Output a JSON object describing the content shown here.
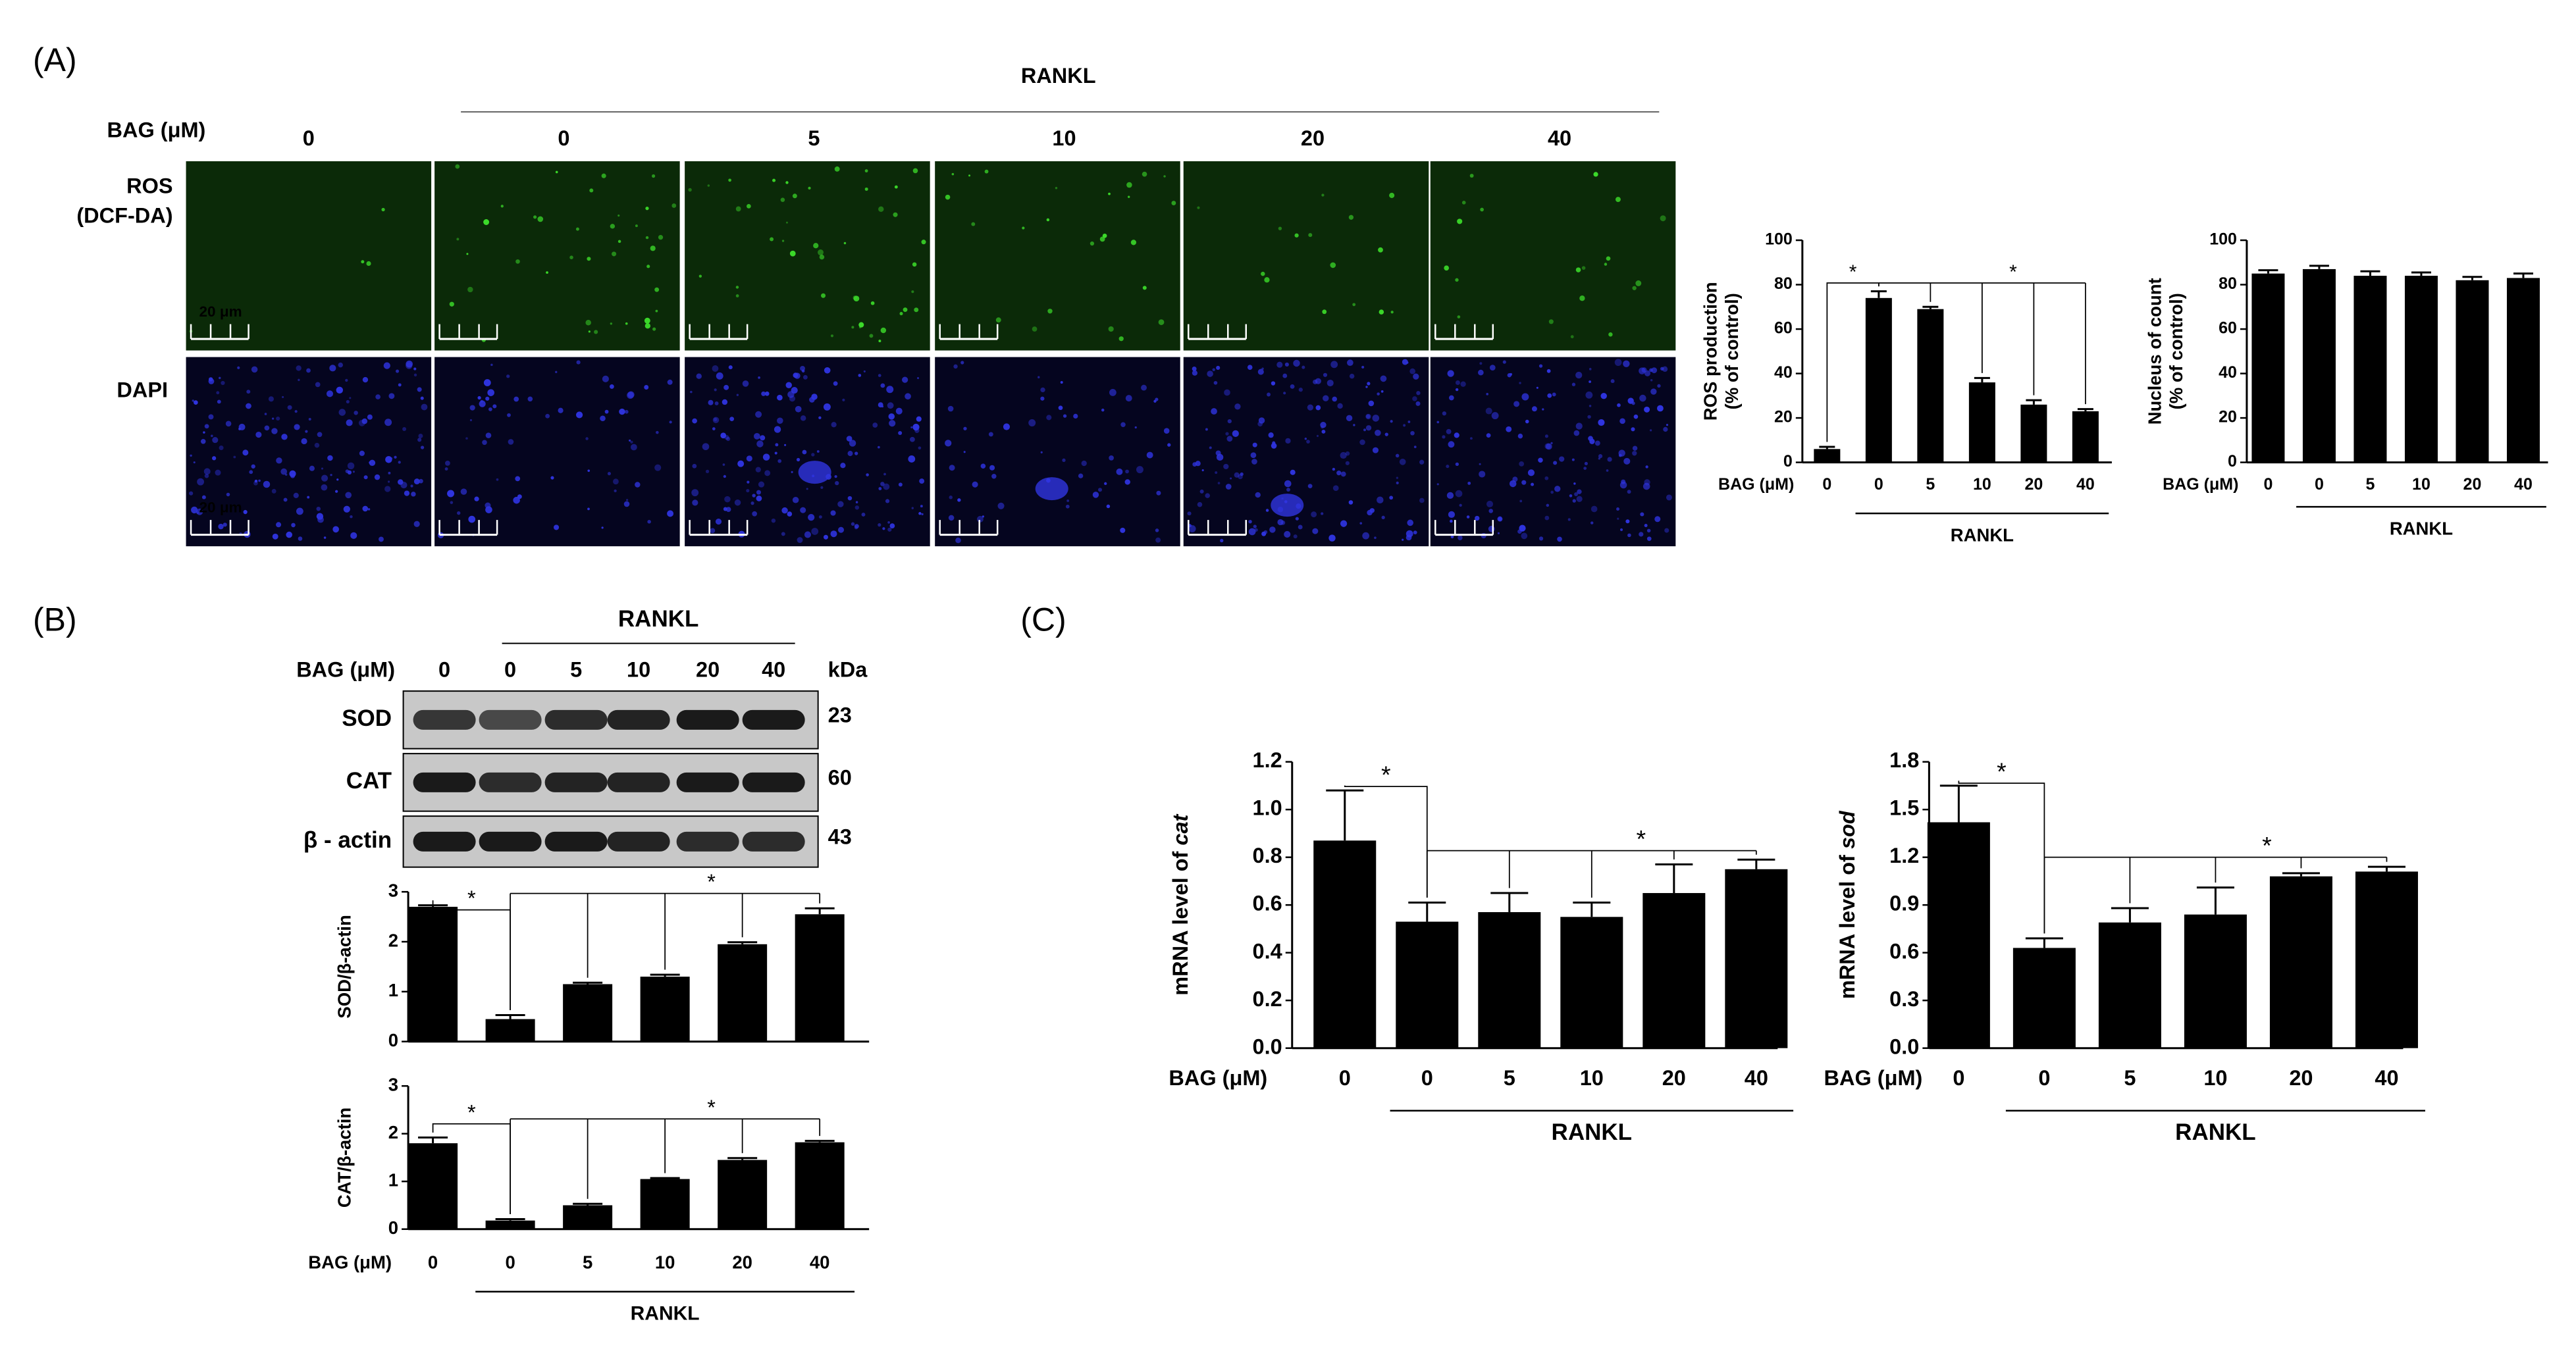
{
  "figure": {
    "panel_labels": [
      "(A)",
      "(B)",
      "(C)"
    ],
    "micrograph": {
      "group_label": "RANKL",
      "dose_label": "BAG (μM)",
      "doses": [
        "0",
        "0",
        "5",
        "10",
        "20",
        "40"
      ],
      "rows": [
        [
          "ROS",
          "(DCF-DA)"
        ],
        [
          "DAPI"
        ]
      ],
      "scale_label": "20 μm"
    },
    "blot": {
      "group_label": "RANKL",
      "dose_label": "BAG (μM)",
      "doses": [
        "0",
        "0",
        "5",
        "10",
        "20",
        "40"
      ],
      "unit": "kDa",
      "proteins": [
        {
          "name": "SOD",
          "kda": "23"
        },
        {
          "name": "CAT",
          "kda": "60"
        },
        {
          "name": "β - actin",
          "kda": "43"
        }
      ]
    }
  },
  "chart_data": [
    {
      "type": "bar",
      "ylabel": [
        "ROS production",
        "(% of control)"
      ],
      "xlabel": "BAG (μM)",
      "group_label": "RANKL",
      "categories": [
        "0",
        "0",
        "5",
        "10",
        "20",
        "40"
      ],
      "values": [
        6,
        74,
        69,
        36,
        26,
        23
      ],
      "errors": [
        1,
        3,
        1,
        2,
        2,
        1
      ],
      "ylim": [
        0,
        100
      ],
      "yticks": [
        0,
        20,
        40,
        60,
        80,
        100
      ],
      "color": "#000000",
      "annotations": [
        "*",
        "*"
      ]
    },
    {
      "type": "bar",
      "ylabel": [
        "Nucleus of count",
        "(% of control)"
      ],
      "xlabel": "BAG (μM)",
      "group_label": "RANKL",
      "categories": [
        "0",
        "0",
        "5",
        "10",
        "20",
        "40"
      ],
      "values": [
        85,
        87,
        84,
        84,
        82,
        83
      ],
      "errors": [
        1.5,
        1.5,
        2,
        1.5,
        1.5,
        2
      ],
      "ylim": [
        0,
        100
      ],
      "yticks": [
        0,
        20,
        40,
        60,
        80,
        100
      ],
      "color": "#000000"
    },
    {
      "type": "bar",
      "ylabel": [
        "SOD/β-actin"
      ],
      "values": [
        2.7,
        0.45,
        1.15,
        1.3,
        1.95,
        2.55
      ],
      "errors": [
        0.03,
        0.08,
        0.03,
        0.04,
        0.04,
        0.12
      ],
      "ylim": [
        0,
        3
      ],
      "yticks": [
        0,
        1,
        2,
        3
      ],
      "color": "#000000",
      "annotations": [
        "*",
        "*"
      ]
    },
    {
      "type": "bar",
      "ylabel": [
        "CAT/β-actin"
      ],
      "xlabel": "BAG (μM)",
      "group_label": "RANKL",
      "categories": [
        "0",
        "0",
        "5",
        "10",
        "20",
        "40"
      ],
      "values": [
        1.8,
        0.18,
        0.5,
        1.05,
        1.45,
        1.82
      ],
      "errors": [
        0.12,
        0.03,
        0.03,
        0.02,
        0.04,
        0.03
      ],
      "ylim": [
        0,
        3
      ],
      "yticks": [
        0,
        1,
        2,
        3
      ],
      "color": "#000000",
      "annotations": [
        "*",
        "*"
      ]
    },
    {
      "type": "bar",
      "ylabel": [
        "mRNA level of "
      ],
      "gene": "cat",
      "xlabel": "BAG (μM)",
      "group_label": "RANKL",
      "categories": [
        "0",
        "0",
        "5",
        "10",
        "20",
        "40"
      ],
      "values": [
        0.87,
        0.53,
        0.57,
        0.55,
        0.65,
        0.75
      ],
      "errors": [
        0.21,
        0.08,
        0.08,
        0.06,
        0.12,
        0.04
      ],
      "ylim": [
        0,
        1.2
      ],
      "yticks": [
        {
          "value": 0,
          "label": "0.0"
        },
        0.2,
        0.4,
        0.6,
        0.8,
        {
          "value": 1,
          "label": "1.0"
        },
        1.2
      ],
      "color": "#000000",
      "annotations": [
        "*",
        "*"
      ]
    },
    {
      "type": "bar",
      "ylabel": [
        "mRNA level of "
      ],
      "gene": "sod",
      "xlabel": "BAG (μM)",
      "group_label": "RANKL",
      "categories": [
        "0",
        "0",
        "5",
        "10",
        "20",
        "40"
      ],
      "values": [
        1.42,
        0.63,
        0.79,
        0.84,
        1.08,
        1.11
      ],
      "errors": [
        0.23,
        0.06,
        0.09,
        0.17,
        0.02,
        0.03
      ],
      "ylim": [
        0,
        1.8
      ],
      "yticks": [
        {
          "value": 0,
          "label": "0.0"
        },
        0.3,
        0.6,
        0.9,
        1.2,
        1.5,
        1.8
      ],
      "color": "#000000",
      "annotations": [
        "*",
        "*"
      ]
    }
  ]
}
